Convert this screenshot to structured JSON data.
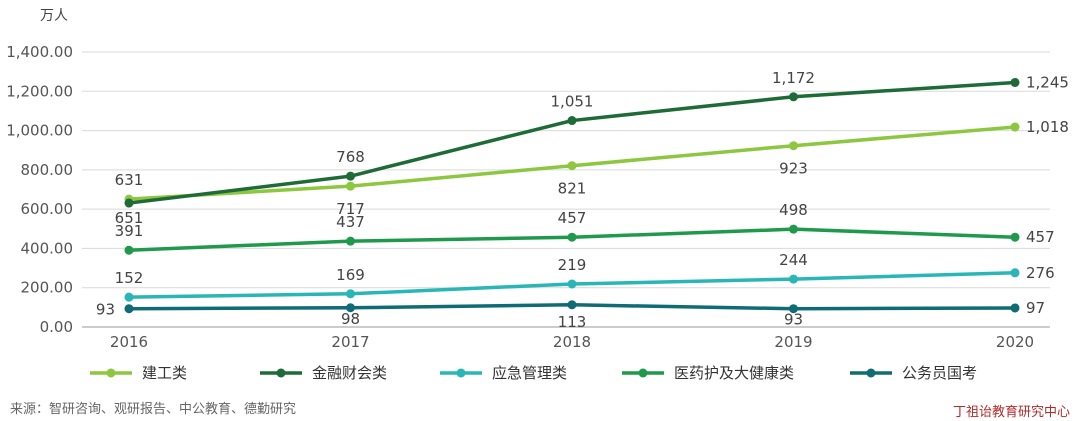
{
  "chart_data": {
    "type": "line",
    "unit_label": "万人",
    "categories": [
      "2016",
      "2017",
      "2018",
      "2019",
      "2020"
    ],
    "ylim": [
      0,
      1400
    ],
    "y_ticks": [
      "0.00",
      "200.00",
      "400.00",
      "600.00",
      "800.00",
      "1,000.00",
      "1,200.00",
      "1,400.00"
    ],
    "y_tick_values": [
      0,
      200,
      400,
      600,
      800,
      1000,
      1200,
      1400
    ],
    "grid": "horizontal",
    "legend_position": "bottom",
    "series": [
      {
        "name": "建工类",
        "color": "#8dc63f",
        "values": [
          651,
          717,
          821,
          923,
          1018
        ],
        "labels": [
          "651",
          "717",
          "821",
          "923",
          "1,018"
        ]
      },
      {
        "name": "金融财会类",
        "color": "#1e6b37",
        "values": [
          631,
          768,
          1051,
          1172,
          1245
        ],
        "labels": [
          "631",
          "768",
          "1,051",
          "1,172",
          "1,245"
        ]
      },
      {
        "name": "应急管理类",
        "color": "#2ab6b6",
        "values": [
          152,
          169,
          219,
          244,
          276
        ],
        "labels": [
          "152",
          "169",
          "219",
          "244",
          "276"
        ]
      },
      {
        "name": "医药护及大健康类",
        "color": "#1f9a4c",
        "values": [
          391,
          437,
          457,
          498,
          457
        ],
        "labels": [
          "391",
          "437",
          "457",
          "498",
          "457"
        ]
      },
      {
        "name": "公务员国考",
        "color": "#0f6b74",
        "values": [
          93,
          98,
          113,
          93,
          97
        ],
        "labels": [
          "93",
          "98",
          "113",
          "93",
          "97"
        ]
      }
    ]
  },
  "source_text": "来源：智研咨询、观研报告、中公教育、德勤研究",
  "watermark_text": "丁祖诒教育研究中心"
}
